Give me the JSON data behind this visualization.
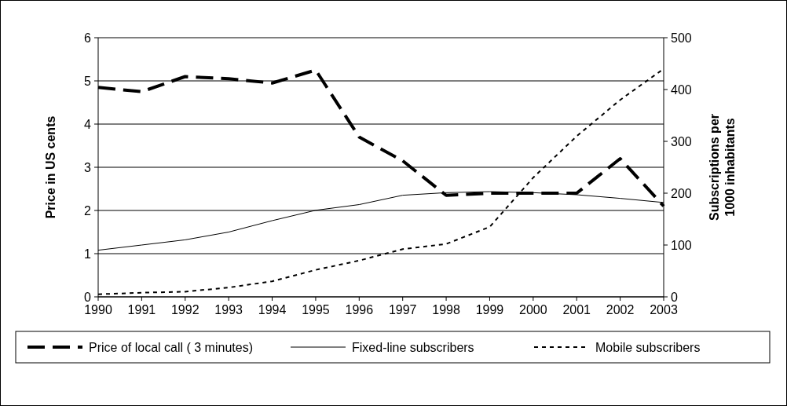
{
  "chart_data": {
    "type": "line",
    "categories": [
      "1990",
      "1991",
      "1992",
      "1993",
      "1994",
      "1995",
      "1996",
      "1997",
      "1998",
      "1999",
      "2000",
      "2001",
      "2002",
      "2003"
    ],
    "ylabel": "Price in US cents",
    "y2label": "Subscriptions per 1000 inhabitants",
    "ylim": [
      0,
      6
    ],
    "yticks": [
      0,
      1,
      2,
      3,
      4,
      5,
      6
    ],
    "y2lim": [
      0,
      500
    ],
    "y2ticks": [
      0,
      100,
      200,
      300,
      400,
      500
    ],
    "grid": "y",
    "legend": "bottom",
    "marker": "none",
    "series": [
      {
        "name": "Price of local call ( 3 minutes)",
        "color": "#000000",
        "line_style": "dashed",
        "values": [
          4.85,
          4.75,
          5.1,
          5.05,
          4.95,
          5.25,
          3.7,
          3.15,
          2.35,
          2.4,
          2.4,
          2.4,
          3.2,
          2.1
        ]
      },
      {
        "name": "Fixed-line subscribers",
        "color": "#000000",
        "line_style": "solid",
        "axis": "y2",
        "values": [
          90,
          100,
          110,
          125,
          147,
          167,
          178,
          196,
          201,
          203,
          201,
          197,
          190,
          182
        ]
      },
      {
        "name": "Mobile subscribers",
        "color": "#000000",
        "line_style": "dotted",
        "axis": "y2",
        "values": [
          5,
          8,
          10,
          18,
          30,
          52,
          70,
          92,
          102,
          135,
          230,
          310,
          380,
          440
        ]
      }
    ]
  }
}
